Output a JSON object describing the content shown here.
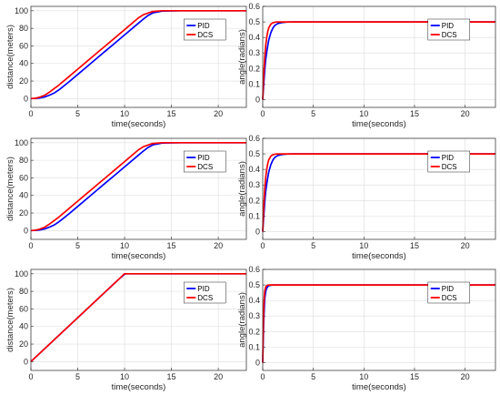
{
  "chart_data": [
    {
      "type": "line",
      "xlabel": "time(seconds)",
      "ylabel": "distance(meters)",
      "xlim": [
        0,
        23
      ],
      "ylim": [
        -10,
        105
      ],
      "xticks": [
        0,
        5,
        10,
        15,
        20
      ],
      "yticks": [
        0,
        20,
        40,
        60,
        80,
        100
      ],
      "grid": true,
      "legend": "top-right",
      "series": [
        {
          "name": "PID",
          "color": "#0000ff",
          "x": [
            0,
            0.5,
            1,
            1.5,
            2,
            2.5,
            3,
            4,
            5,
            6,
            7,
            8,
            9,
            10,
            10.5,
            11,
            11.5,
            12,
            12.5,
            13,
            14,
            16,
            18,
            20,
            23
          ],
          "y": [
            0,
            0.2,
            0.8,
            2,
            4,
            6.5,
            10,
            18.5,
            27.5,
            36.5,
            45.5,
            54.5,
            63.5,
            72.5,
            77,
            81.5,
            86,
            90.5,
            94.5,
            97.5,
            99.6,
            100,
            100,
            100,
            100
          ]
        },
        {
          "name": "DCS",
          "color": "#ff0000",
          "x": [
            0,
            0.5,
            1,
            1.5,
            2,
            3,
            4,
            5,
            6,
            7,
            8,
            9,
            10,
            10.5,
            11,
            11.5,
            12,
            13,
            14,
            16,
            18,
            20,
            23
          ],
          "y": [
            0,
            0.5,
            1.8,
            4,
            7.5,
            15.5,
            24.5,
            33.5,
            42.5,
            51.5,
            60.5,
            69.5,
            78.5,
            83,
            87.5,
            92,
            95.5,
            99.2,
            100,
            100,
            100,
            100,
            100
          ]
        }
      ]
    },
    {
      "type": "line",
      "xlabel": "time(seconds)",
      "ylabel": "angle(radians)",
      "xlim": [
        0,
        23
      ],
      "ylim": [
        -0.05,
        0.6
      ],
      "xticks": [
        0,
        5,
        10,
        15,
        20
      ],
      "yticks": [
        0,
        0.1,
        0.2,
        0.3,
        0.4,
        0.5,
        0.6
      ],
      "grid": true,
      "legend": "top-right",
      "series": [
        {
          "name": "PID",
          "color": "#0000ff",
          "x": [
            0,
            0.1,
            0.2,
            0.3,
            0.4,
            0.5,
            0.6,
            0.8,
            1.0,
            1.2,
            1.5,
            2.0,
            2.5,
            3,
            5,
            10,
            23
          ],
          "y": [
            0,
            0.1,
            0.19,
            0.26,
            0.31,
            0.35,
            0.385,
            0.43,
            0.46,
            0.478,
            0.49,
            0.497,
            0.499,
            0.5,
            0.5,
            0.5,
            0.5
          ]
        },
        {
          "name": "DCS",
          "color": "#ff0000",
          "x": [
            0,
            0.1,
            0.2,
            0.3,
            0.4,
            0.5,
            0.6,
            0.8,
            1.0,
            1.3,
            1.8,
            3,
            10,
            23
          ],
          "y": [
            0,
            0.16,
            0.27,
            0.35,
            0.405,
            0.44,
            0.463,
            0.485,
            0.494,
            0.499,
            0.5,
            0.5,
            0.5,
            0.5
          ]
        }
      ]
    },
    {
      "type": "line",
      "xlabel": "time(seconds)",
      "ylabel": "distance(meters)",
      "xlim": [
        0,
        23
      ],
      "ylim": [
        -10,
        105
      ],
      "xticks": [
        0,
        5,
        10,
        15,
        20
      ],
      "yticks": [
        0,
        20,
        40,
        60,
        80,
        100
      ],
      "grid": true,
      "legend": "top-right",
      "series": [
        {
          "name": "PID",
          "color": "#0000ff",
          "x": [
            0,
            0.5,
            1,
            1.5,
            2,
            2.5,
            3,
            4,
            5,
            6,
            7,
            8,
            9,
            10,
            10.5,
            11,
            11.5,
            12,
            12.5,
            13,
            14,
            16,
            18,
            20,
            23
          ],
          "y": [
            0,
            0.2,
            0.8,
            2,
            4,
            6.5,
            10,
            18.5,
            27.5,
            36.5,
            45.5,
            54.5,
            63.5,
            72.5,
            77,
            81.5,
            86,
            90.5,
            94.5,
            97.5,
            99.6,
            100,
            100,
            100,
            100
          ]
        },
        {
          "name": "DCS",
          "color": "#ff0000",
          "x": [
            0,
            0.5,
            1,
            1.5,
            2,
            3,
            4,
            5,
            6,
            7,
            8,
            9,
            10,
            10.5,
            11,
            11.5,
            12,
            13,
            14,
            16,
            18,
            20,
            23
          ],
          "y": [
            0,
            0.5,
            1.8,
            4,
            7.5,
            15.5,
            24.5,
            33.5,
            42.5,
            51.5,
            60.5,
            69.5,
            78.5,
            83,
            87.5,
            92,
            95.5,
            99.2,
            100,
            100,
            100,
            100,
            100
          ]
        }
      ]
    },
    {
      "type": "line",
      "xlabel": "time(seconds)",
      "ylabel": "angle(radians)",
      "xlim": [
        0,
        23
      ],
      "ylim": [
        -0.05,
        0.6
      ],
      "xticks": [
        0,
        5,
        10,
        15,
        20
      ],
      "yticks": [
        0,
        0.1,
        0.2,
        0.3,
        0.4,
        0.5,
        0.6
      ],
      "grid": true,
      "legend": "top-right",
      "series": [
        {
          "name": "PID",
          "color": "#0000ff",
          "x": [
            0,
            0.1,
            0.2,
            0.3,
            0.4,
            0.5,
            0.6,
            0.8,
            1.0,
            1.2,
            1.5,
            2.0,
            2.5,
            3,
            5,
            10,
            23
          ],
          "y": [
            0,
            0.1,
            0.19,
            0.26,
            0.31,
            0.35,
            0.385,
            0.43,
            0.46,
            0.478,
            0.49,
            0.497,
            0.499,
            0.5,
            0.5,
            0.5,
            0.5
          ]
        },
        {
          "name": "DCS",
          "color": "#ff0000",
          "x": [
            0,
            0.1,
            0.2,
            0.3,
            0.4,
            0.5,
            0.6,
            0.8,
            1.0,
            1.3,
            1.8,
            3,
            10,
            23
          ],
          "y": [
            0,
            0.16,
            0.27,
            0.35,
            0.405,
            0.44,
            0.463,
            0.485,
            0.494,
            0.499,
            0.5,
            0.5,
            0.5,
            0.5
          ]
        }
      ]
    },
    {
      "type": "line",
      "xlabel": "time(seconds)",
      "ylabel": "distance(meters)",
      "xlim": [
        0,
        23
      ],
      "ylim": [
        -10,
        105
      ],
      "xticks": [
        0,
        5,
        10,
        15,
        20
      ],
      "yticks": [
        0,
        20,
        40,
        60,
        80,
        100
      ],
      "grid": true,
      "legend": "top-right",
      "series": [
        {
          "name": "PID",
          "color": "#0000ff",
          "x": [
            0,
            9.5,
            10,
            10.2,
            10.5,
            23
          ],
          "y": [
            0,
            95,
            99.5,
            100,
            100,
            100
          ]
        },
        {
          "name": "DCS",
          "color": "#ff0000",
          "x": [
            0,
            10,
            10.3,
            23
          ],
          "y": [
            0,
            100,
            100,
            100
          ]
        }
      ]
    },
    {
      "type": "line",
      "xlabel": "time(seconds)",
      "ylabel": "angle(radians)",
      "xlim": [
        0,
        23
      ],
      "ylim": [
        -0.05,
        0.6
      ],
      "xticks": [
        0,
        5,
        10,
        15,
        20
      ],
      "yticks": [
        0,
        0.1,
        0.2,
        0.3,
        0.4,
        0.5,
        0.6
      ],
      "grid": true,
      "legend": "top-right",
      "series": [
        {
          "name": "PID",
          "color": "#0000ff",
          "x": [
            0,
            0.05,
            0.1,
            0.15,
            0.2,
            0.3,
            0.4,
            0.5,
            0.6,
            0.8,
            1.0,
            1.5,
            3,
            23
          ],
          "y": [
            0,
            0.15,
            0.27,
            0.35,
            0.41,
            0.46,
            0.48,
            0.49,
            0.495,
            0.498,
            0.5,
            0.5,
            0.5,
            0.5
          ]
        },
        {
          "name": "DCS",
          "color": "#ff0000",
          "x": [
            0,
            0.05,
            0.1,
            0.15,
            0.2,
            0.3,
            0.4,
            0.5,
            0.7,
            1.0,
            3,
            23
          ],
          "y": [
            0,
            0.22,
            0.35,
            0.42,
            0.46,
            0.487,
            0.496,
            0.499,
            0.5,
            0.5,
            0.5,
            0.5
          ]
        }
      ]
    }
  ]
}
